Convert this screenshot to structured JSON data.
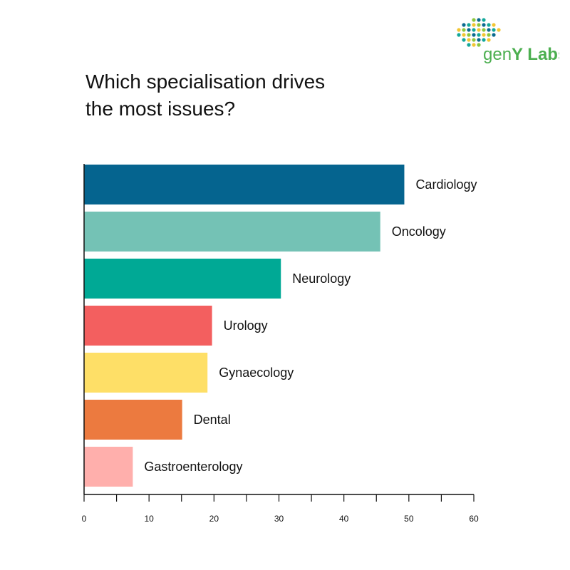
{
  "brand": {
    "logo_text_prefix": "gen",
    "logo_text_suffix": "Y Labs",
    "dot_colors": [
      "#0b6a8f",
      "#14a89a",
      "#f2c531",
      "#8cc63f"
    ],
    "text_color": "#4caf50"
  },
  "chart_data": {
    "type": "bar",
    "orientation": "horizontal",
    "title_lines": [
      "Which specialisation drives",
      "the most issues?"
    ],
    "categories": [
      "Cardiology",
      "Oncology",
      "Neurology",
      "Urology",
      "Gynaecology",
      "Dental",
      "Gastroenterology"
    ],
    "values": [
      49.3,
      45.6,
      30.3,
      19.7,
      19.0,
      15.1,
      7.5
    ],
    "colors": [
      "#05648f",
      "#74c2b5",
      "#00a995",
      "#f35f5f",
      "#fedf67",
      "#ec7a3f",
      "#ffafac"
    ],
    "xlim": [
      0,
      60
    ],
    "x_ticks": [
      0,
      10,
      20,
      30,
      40,
      50,
      60
    ],
    "xlabel": "",
    "ylabel": "",
    "grid": false,
    "legend": "none"
  }
}
